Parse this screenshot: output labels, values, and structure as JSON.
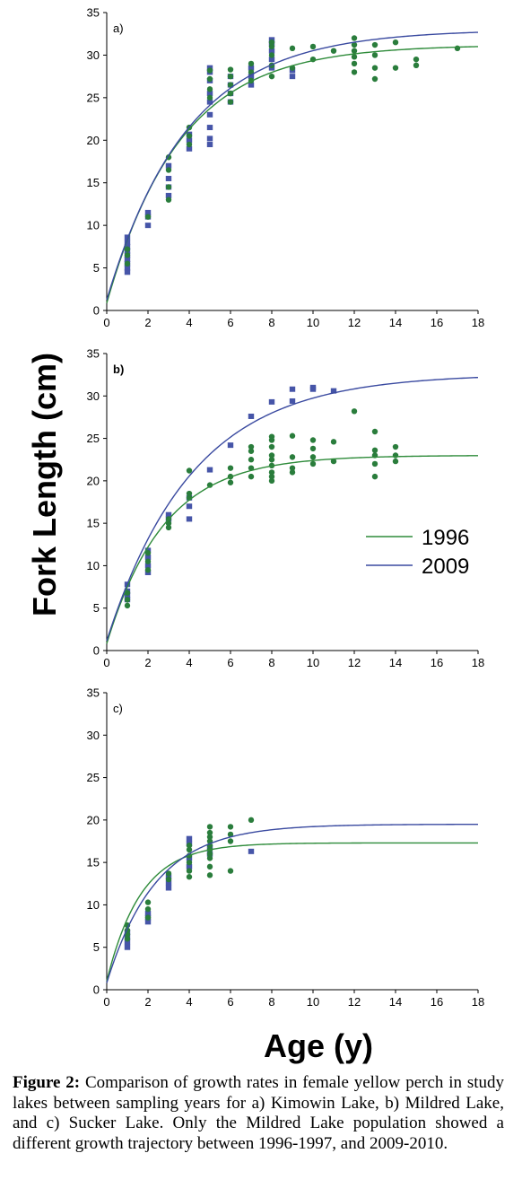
{
  "figure": {
    "y_axis_label": "Fork Length (cm)",
    "x_axis_label": "Age (y)",
    "legend": [
      {
        "label": "1996",
        "color": "#2e8b3a"
      },
      {
        "label": "2009",
        "color": "#3a4aa0"
      }
    ],
    "colors": {
      "series_1996": "#2e8b3a",
      "series_2009": "#3a4aa0",
      "marker_1996": "#2a7d3c",
      "marker_2009": "#4655a8"
    },
    "caption_lead": "Figure 2:",
    "caption_text": " Comparison of growth rates in female yellow perch in study lakes between sampling years for a) Kimowin Lake, b) Mildred Lake, and c) Sucker Lake. Only the Mildred Lake population showed a different growth trajectory between 1996-1997, and 2009-2010."
  },
  "chart_data": [
    {
      "type": "scatter",
      "panel_label": "a)",
      "x_ticks": [
        "0",
        "2",
        "4",
        "6",
        "8",
        "10",
        "12",
        "14",
        "16",
        "18"
      ],
      "y_ticks": [
        "0",
        "5",
        "10",
        "15",
        "20",
        "25",
        "30",
        "35"
      ],
      "xlim": [
        0,
        18
      ],
      "ylim": [
        0,
        35
      ],
      "curves": [
        {
          "year": "1996",
          "linf": 31.2,
          "k": 0.28,
          "t0": -0.1
        },
        {
          "year": "2009",
          "linf": 33.0,
          "k": 0.255,
          "t0": -0.15
        }
      ],
      "points_1996": [
        [
          1,
          5.5
        ],
        [
          1,
          6.5
        ],
        [
          1,
          7.2
        ],
        [
          2,
          11
        ],
        [
          3,
          13
        ],
        [
          3,
          14.5
        ],
        [
          3,
          16.5
        ],
        [
          3,
          18
        ],
        [
          4,
          19.5
        ],
        [
          4,
          20.5
        ],
        [
          4,
          21.5
        ],
        [
          5,
          25
        ],
        [
          5,
          26
        ],
        [
          5,
          27.2
        ],
        [
          5,
          28.2
        ],
        [
          6,
          24.5
        ],
        [
          6,
          25.5
        ],
        [
          6,
          26.5
        ],
        [
          6,
          27.5
        ],
        [
          6,
          28.3
        ],
        [
          7,
          27
        ],
        [
          7,
          28
        ],
        [
          7,
          29
        ],
        [
          8,
          27.5
        ],
        [
          8,
          28.8
        ],
        [
          8,
          30
        ],
        [
          8,
          31
        ],
        [
          8,
          31.5
        ],
        [
          9,
          28.5
        ],
        [
          9,
          30.8
        ],
        [
          10,
          29.5
        ],
        [
          10,
          31
        ],
        [
          11,
          30.5
        ],
        [
          12,
          28
        ],
        [
          12,
          29
        ],
        [
          12,
          29.8
        ],
        [
          12,
          30.5
        ],
        [
          12,
          31.2
        ],
        [
          12,
          32
        ],
        [
          13,
          27.2
        ],
        [
          13,
          28.5
        ],
        [
          13,
          30
        ],
        [
          13,
          31.2
        ],
        [
          14,
          28.5
        ],
        [
          14,
          31.5
        ],
        [
          15,
          28.8
        ],
        [
          15,
          29.5
        ],
        [
          17,
          30.8
        ]
      ],
      "points_2009": [
        [
          1,
          4.5
        ],
        [
          1,
          5
        ],
        [
          1,
          5.5
        ],
        [
          1,
          6
        ],
        [
          1,
          6.5
        ],
        [
          1,
          7
        ],
        [
          1,
          7.5
        ],
        [
          1,
          8
        ],
        [
          1,
          8.6
        ],
        [
          2,
          10
        ],
        [
          2,
          11
        ],
        [
          2,
          11.5
        ],
        [
          3,
          13.5
        ],
        [
          3,
          14.5
        ],
        [
          3,
          15.5
        ],
        [
          3,
          17
        ],
        [
          4,
          19
        ],
        [
          4,
          20
        ],
        [
          4,
          20.7
        ],
        [
          5,
          19.5
        ],
        [
          5,
          20.2
        ],
        [
          5,
          21.5
        ],
        [
          5,
          23
        ],
        [
          5,
          24.5
        ],
        [
          5,
          25.5
        ],
        [
          5,
          27
        ],
        [
          5,
          28
        ],
        [
          5,
          28.5
        ],
        [
          6,
          24.5
        ],
        [
          6,
          25.5
        ],
        [
          6,
          26.5
        ],
        [
          6,
          27.5
        ],
        [
          7,
          26.5
        ],
        [
          7,
          27.5
        ],
        [
          7,
          28.5
        ],
        [
          8,
          28.5
        ],
        [
          8,
          29.5
        ],
        [
          8,
          30.5
        ],
        [
          8,
          31.3
        ],
        [
          8,
          31.8
        ],
        [
          9,
          27.5
        ],
        [
          9,
          28.2
        ]
      ]
    },
    {
      "type": "scatter",
      "panel_label": "b)",
      "x_ticks": [
        "0",
        "2",
        "4",
        "6",
        "8",
        "10",
        "12",
        "14",
        "16",
        "18"
      ],
      "y_ticks": [
        "0",
        "5",
        "10",
        "15",
        "20",
        "25",
        "30",
        "35"
      ],
      "xlim": [
        0,
        18
      ],
      "ylim": [
        0,
        35
      ],
      "curves": [
        {
          "year": "1996",
          "linf": 23.0,
          "k": 0.36,
          "t0": -0.1
        },
        {
          "year": "2009",
          "linf": 32.6,
          "k": 0.24,
          "t0": -0.15
        }
      ],
      "points_1996": [
        [
          1,
          5.3
        ],
        [
          1,
          6
        ],
        [
          1,
          6.8
        ],
        [
          2,
          9.5
        ],
        [
          2,
          10.5
        ],
        [
          2,
          11.5
        ],
        [
          3,
          14.5
        ],
        [
          3,
          15
        ],
        [
          3,
          15.5
        ],
        [
          4,
          18
        ],
        [
          4,
          18.5
        ],
        [
          4,
          21.2
        ],
        [
          5,
          19.5
        ],
        [
          6,
          19.8
        ],
        [
          6,
          20.5
        ],
        [
          6,
          21.5
        ],
        [
          7,
          20.5
        ],
        [
          7,
          21.5
        ],
        [
          7,
          22.5
        ],
        [
          7,
          23.5
        ],
        [
          7,
          24
        ],
        [
          8,
          20
        ],
        [
          8,
          20.5
        ],
        [
          8,
          21
        ],
        [
          8,
          21.8
        ],
        [
          8,
          22.5
        ],
        [
          8,
          23
        ],
        [
          8,
          24
        ],
        [
          8,
          24.8
        ],
        [
          8,
          25.2
        ],
        [
          9,
          21
        ],
        [
          9,
          21.5
        ],
        [
          9,
          22.8
        ],
        [
          9,
          25.3
        ],
        [
          10,
          22
        ],
        [
          10,
          22.8
        ],
        [
          10,
          23.8
        ],
        [
          10,
          24.8
        ],
        [
          11,
          22.3
        ],
        [
          11,
          24.6
        ],
        [
          12,
          28.2
        ],
        [
          13,
          20.5
        ],
        [
          13,
          22
        ],
        [
          13,
          23
        ],
        [
          13,
          23.6
        ],
        [
          13,
          25.8
        ],
        [
          14,
          22.3
        ],
        [
          14,
          23
        ],
        [
          14,
          24
        ]
      ],
      "points_2009": [
        [
          1,
          6
        ],
        [
          1,
          6.5
        ],
        [
          1,
          7
        ],
        [
          1,
          7.8
        ],
        [
          2,
          9.2
        ],
        [
          2,
          10
        ],
        [
          2,
          11
        ],
        [
          2,
          11.8
        ],
        [
          3,
          15.5
        ],
        [
          3,
          16
        ],
        [
          4,
          15.5
        ],
        [
          4,
          17
        ],
        [
          4,
          18
        ],
        [
          5,
          21.3
        ],
        [
          6,
          24.2
        ],
        [
          7,
          27.6
        ],
        [
          8,
          29.3
        ],
        [
          9,
          29.4
        ],
        [
          9,
          30.8
        ],
        [
          10,
          30.8
        ],
        [
          10,
          31
        ],
        [
          11,
          30.6
        ]
      ]
    },
    {
      "type": "scatter",
      "panel_label": "c)",
      "x_ticks": [
        "0",
        "2",
        "4",
        "6",
        "8",
        "10",
        "12",
        "14",
        "16",
        "18"
      ],
      "y_ticks": [
        "0",
        "5",
        "10",
        "15",
        "20",
        "25",
        "30",
        "35"
      ],
      "xlim": [
        0,
        18
      ],
      "ylim": [
        0,
        35
      ],
      "curves": [
        {
          "year": "1996",
          "linf": 17.3,
          "k": 0.6,
          "t0": -0.1
        },
        {
          "year": "2009",
          "linf": 19.5,
          "k": 0.42,
          "t0": -0.1
        }
      ],
      "points_1996": [
        [
          1,
          6
        ],
        [
          1,
          6.5
        ],
        [
          1,
          7
        ],
        [
          1,
          7.6
        ],
        [
          2,
          8.5
        ],
        [
          2,
          9.5
        ],
        [
          2,
          10.3
        ],
        [
          3,
          13
        ],
        [
          3,
          13.7
        ],
        [
          4,
          13.3
        ],
        [
          4,
          14
        ],
        [
          4,
          15
        ],
        [
          4,
          15.8
        ],
        [
          4,
          16.5
        ],
        [
          4,
          17
        ],
        [
          5,
          13.5
        ],
        [
          5,
          14.5
        ],
        [
          5,
          15.5
        ],
        [
          5,
          16
        ],
        [
          5,
          16.5
        ],
        [
          5,
          17
        ],
        [
          5,
          17.5
        ],
        [
          5,
          18
        ],
        [
          5,
          18.5
        ],
        [
          5,
          19.2
        ],
        [
          6,
          14
        ],
        [
          6,
          17.5
        ],
        [
          6,
          18.3
        ],
        [
          6,
          19.2
        ],
        [
          7,
          20
        ]
      ],
      "points_2009": [
        [
          1,
          5
        ],
        [
          1,
          5.6
        ],
        [
          1,
          6.2
        ],
        [
          1,
          6.8
        ],
        [
          2,
          8
        ],
        [
          2,
          8.5
        ],
        [
          2,
          9
        ],
        [
          3,
          12
        ],
        [
          3,
          12.6
        ],
        [
          3,
          13.3
        ],
        [
          4,
          14.5
        ],
        [
          4,
          15.5
        ],
        [
          4,
          17.2
        ],
        [
          4,
          17.8
        ],
        [
          5,
          16
        ],
        [
          5,
          16.8
        ],
        [
          7,
          16.3
        ]
      ]
    }
  ]
}
